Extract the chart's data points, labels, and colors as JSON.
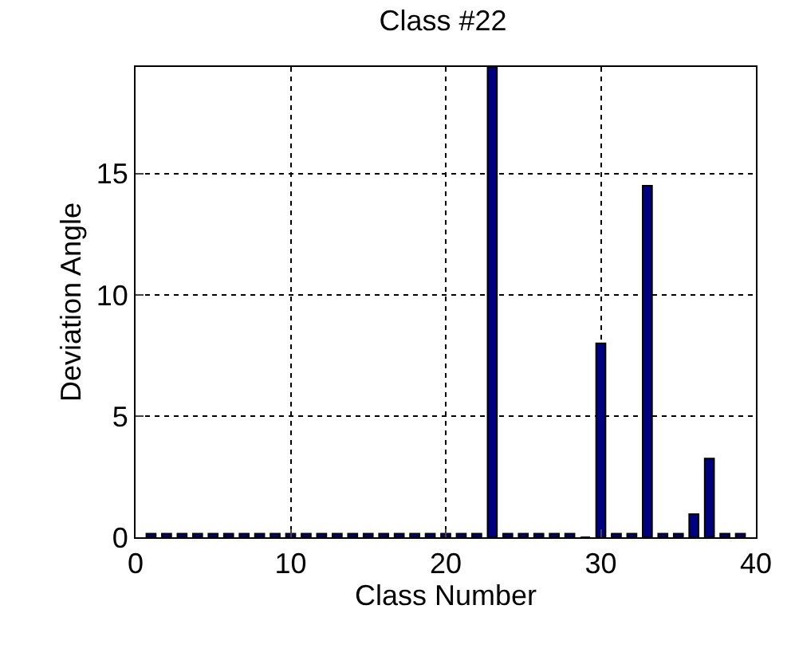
{
  "chart_data": {
    "type": "bar",
    "title": "Class #22",
    "xlabel": "Class Number",
    "ylabel": "Deviation Angle",
    "x": [
      1,
      2,
      3,
      4,
      5,
      6,
      7,
      8,
      9,
      10,
      11,
      12,
      13,
      14,
      15,
      16,
      17,
      18,
      19,
      20,
      21,
      22,
      23,
      24,
      25,
      26,
      27,
      28,
      29,
      30,
      31,
      32,
      33,
      34,
      35,
      36,
      37,
      38,
      39
    ],
    "values": [
      0.15,
      0.15,
      0.15,
      0.15,
      0.15,
      0.15,
      0.15,
      0.15,
      0.15,
      0.15,
      0.15,
      0.15,
      0.15,
      0.15,
      0.15,
      0.15,
      0.15,
      0.15,
      0.15,
      0.15,
      0.15,
      0.15,
      19.4,
      0.15,
      0.15,
      0.15,
      0.15,
      0.15,
      0,
      8,
      0.15,
      0.15,
      14.5,
      0.15,
      0.15,
      0.95,
      3.25,
      0.15,
      0.15
    ],
    "color": "#00007f",
    "xlim": [
      0,
      40
    ],
    "xticks": [
      0,
      10,
      20,
      30,
      40
    ],
    "ylim": [
      0,
      19.4
    ],
    "yticks": [
      0,
      5,
      10,
      15
    ],
    "grid": true
  }
}
